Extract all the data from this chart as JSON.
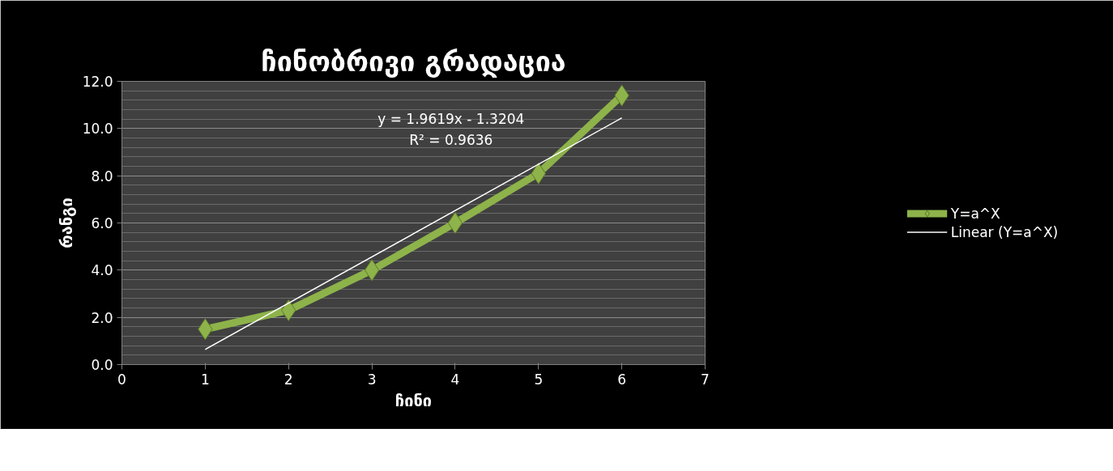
{
  "chart_data": {
    "type": "line",
    "title": "ჩინობრივი გრადაცია",
    "xlabel": "ჩინი",
    "ylabel": "რანგი",
    "x": [
      1,
      2,
      3,
      4,
      5,
      6
    ],
    "series": [
      {
        "name": "Y=a^X",
        "color": "#8db34a",
        "values": [
          1.5,
          2.3,
          4.0,
          6.0,
          8.1,
          11.4
        ],
        "marker": "diamond"
      },
      {
        "name": "Linear (Y=a^X)",
        "color": "#ffffff",
        "type": "line",
        "x": [
          1,
          6
        ],
        "values": [
          0.64,
          10.45
        ],
        "marker": "none"
      }
    ],
    "annotations": [
      "y = 1.9619x - 1.3204",
      "R² = 0.9636"
    ],
    "xlim": [
      0,
      7
    ],
    "xticks": [
      0,
      1,
      2,
      3,
      4,
      5,
      6,
      7
    ],
    "ylim": [
      0,
      12
    ],
    "yticks": [
      {
        "value": 0,
        "label": "0.0"
      },
      {
        "value": 2,
        "label": "2.0"
      },
      {
        "value": 4,
        "label": "4.0"
      },
      {
        "value": 6,
        "label": "6.0"
      },
      {
        "value": 8,
        "label": "8.0"
      },
      {
        "value": 10,
        "label": "10.0"
      },
      {
        "value": 12,
        "label": "12.0"
      }
    ],
    "grid": "y",
    "legend": "right"
  }
}
